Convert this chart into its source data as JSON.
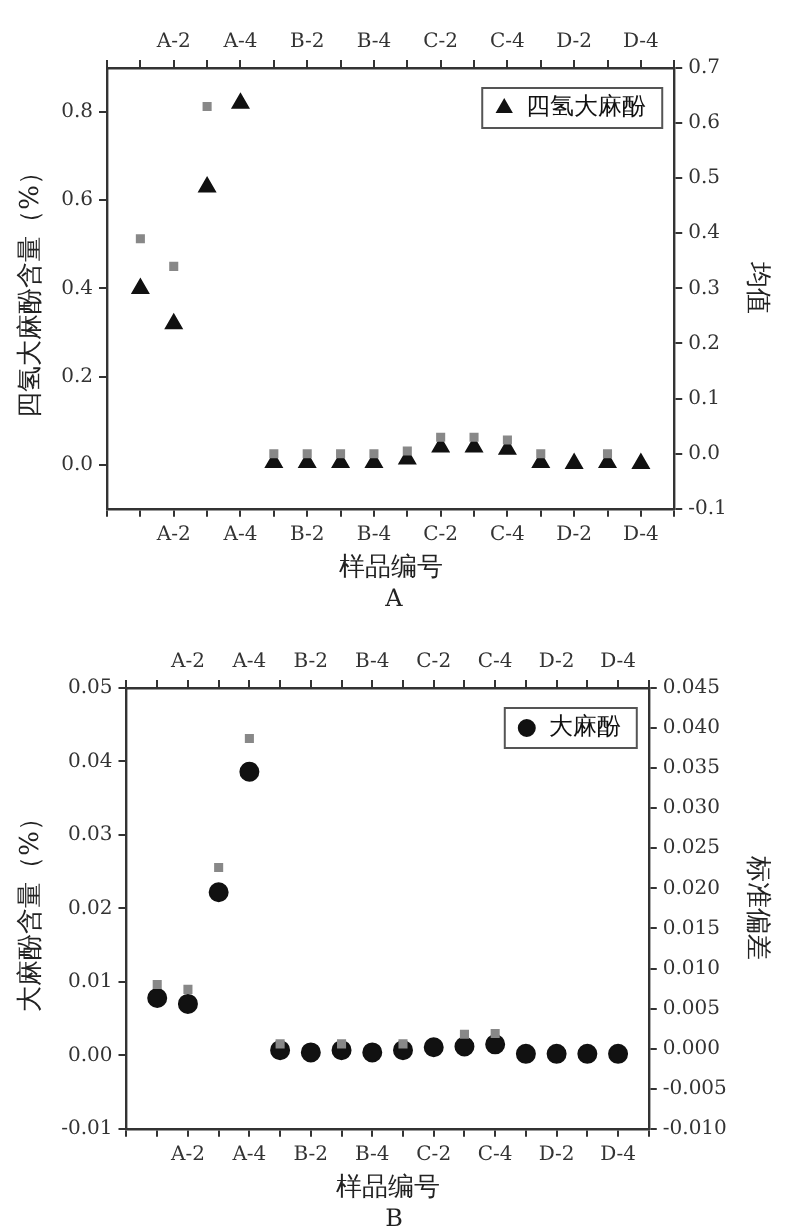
{
  "chart_data": [
    {
      "type": "scatter",
      "xlabel": "样品编号",
      "ylabel": "四氢大麻酚含量（%）",
      "y2label": "均值",
      "categories": [
        null,
        null,
        "A-2",
        null,
        "A-4",
        null,
        "B-2",
        null,
        "B-4",
        null,
        "C-2",
        null,
        "C-4",
        null,
        "D-2",
        null,
        "D-4",
        null
      ],
      "series": [
        {
          "name": "四氢大麻酚",
          "color": "#111111",
          "marker": "triangle",
          "values": [
            null,
            0.4,
            0.32,
            0.63,
            0.82,
            0.005,
            0.005,
            0.005,
            0.005,
            0.013,
            0.04,
            0.04,
            0.035,
            0.005,
            0.003,
            0.005,
            0.003,
            null
          ]
        },
        {
          "color": "#888888",
          "marker": "square",
          "axis": "y2",
          "values": [
            null,
            0.39,
            0.34,
            0.63,
            null,
            0.0,
            0.0,
            0.0,
            0.0,
            0.005,
            0.03,
            0.03,
            0.025,
            0.0,
            null,
            0.0,
            null,
            null
          ]
        }
      ],
      "ylim": [
        -0.1,
        0.9
      ],
      "yticks": [
        {
          "value": 0,
          "label": "0.0"
        },
        {
          "value": 0.2,
          "label": "0.2"
        },
        {
          "value": 0.4,
          "label": "0.4"
        },
        {
          "value": 0.6,
          "label": "0.6"
        },
        {
          "value": 0.8,
          "label": "0.8"
        }
      ],
      "y2lim": [
        -0.1,
        0.7
      ],
      "y2ticks": [
        -0.1,
        {
          "value": 0,
          "label": "0.0"
        },
        0.1,
        0.2,
        0.3,
        0.4,
        0.5,
        0.6,
        0.7
      ],
      "legend": "top right",
      "grid": false,
      "annotations": [
        "A"
      ]
    },
    {
      "type": "scatter",
      "xlabel": "样品编号",
      "ylabel": "大麻酚含量（%）",
      "y2label": "标准偏差",
      "categories": [
        null,
        null,
        "A-2",
        null,
        "A-4",
        null,
        "B-2",
        null,
        "B-4",
        null,
        "C-2",
        null,
        "C-4",
        null,
        "D-2",
        null,
        "D-4",
        null
      ],
      "series": [
        {
          "name": "大麻酚",
          "color": "#111111",
          "marker": "circle",
          "values": [
            null,
            0.0078,
            0.007,
            0.0222,
            0.0386,
            0.0007,
            0.0004,
            0.0007,
            0.0004,
            0.0007,
            0.0011,
            0.0012,
            0.0015,
            0.0002,
            0.0002,
            0.0002,
            0.0002,
            null
          ]
        },
        {
          "color": "#888888",
          "marker": "square",
          "axis": "y2",
          "values": [
            null,
            0.008,
            0.0074,
            0.0226,
            0.0387,
            0.0006,
            null,
            0.0006,
            null,
            0.0006,
            null,
            0.0018,
            0.0019,
            null,
            null,
            null,
            null,
            null
          ]
        }
      ],
      "ylim": [
        -0.01,
        0.05
      ],
      "yticks": [
        -0.01,
        {
          "value": 0,
          "label": "0.00"
        },
        0.01,
        0.02,
        0.03,
        0.04,
        0.05
      ],
      "y2lim": [
        -0.01,
        0.045
      ],
      "y2ticks": [
        {
          "value": -0.01,
          "label": "-0.010"
        },
        {
          "value": -0.005,
          "label": "-0.005"
        },
        {
          "value": 0,
          "label": "0.000"
        },
        {
          "value": 0.005,
          "label": "0.005"
        },
        {
          "value": 0.01,
          "label": "0.010"
        },
        {
          "value": 0.015,
          "label": "0.015"
        },
        {
          "value": 0.02,
          "label": "0.020"
        },
        {
          "value": 0.025,
          "label": "0.025"
        },
        {
          "value": 0.03,
          "label": "0.030"
        },
        {
          "value": 0.035,
          "label": "0.035"
        },
        {
          "value": 0.04,
          "label": "0.040"
        },
        {
          "value": 0.045,
          "label": "0.045"
        }
      ],
      "legend": "top right",
      "grid": false,
      "annotations": [
        "B"
      ]
    }
  ]
}
